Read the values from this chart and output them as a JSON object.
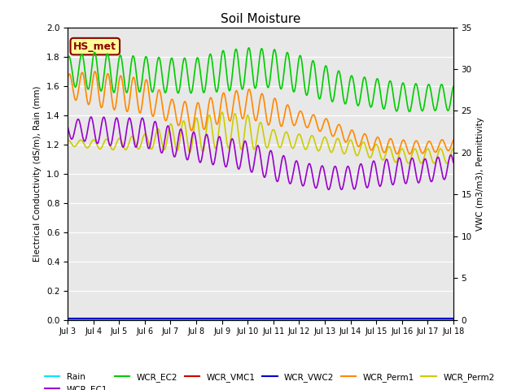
{
  "title": "Soil Moisture",
  "ylabel_left": "Electrical Conductivity (dS/m), Rain (mm)",
  "ylabel_right": "VWC (m3/m3), Permittivity",
  "ylim_left": [
    0.0,
    2.0
  ],
  "ylim_right": [
    0,
    35
  ],
  "yticks_left": [
    0.0,
    0.2,
    0.4,
    0.6,
    0.8,
    1.0,
    1.2,
    1.4,
    1.6,
    1.8,
    2.0
  ],
  "yticks_right": [
    0,
    5,
    10,
    15,
    20,
    25,
    30,
    35
  ],
  "xtick_labels": [
    "Jul 3",
    "Jul 4",
    "Jul 5",
    "Jul 6",
    "Jul 7",
    "Jul 8",
    "Jul 9",
    "Jul 10",
    "Jul 11",
    "Jul 12",
    "Jul 13",
    "Jul 14",
    "Jul 15",
    "Jul 16",
    "Jul 17",
    "Jul 18"
  ],
  "annotation_text": "HS_met",
  "annotation_color": "#8B0000",
  "annotation_bg": "#ffff99",
  "background_color": "#e8e8e8",
  "colors": {
    "Rain": "#00e5ff",
    "WCR_EC1": "#9900cc",
    "WCR_EC2": "#00cc00",
    "WCR_VMC1": "#cc0000",
    "WCR_VWC2": "#0000cc",
    "WCR_Perm1": "#ff8800",
    "WCR_Perm2": "#cccc00"
  },
  "figsize": [
    6.4,
    4.8
  ],
  "dpi": 100
}
